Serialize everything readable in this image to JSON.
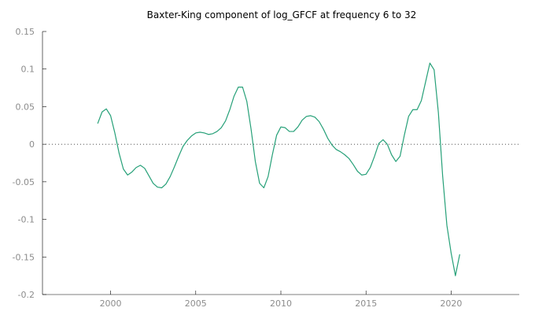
{
  "chart_data": {
    "type": "line",
    "title": "Baxter-King component of log_GFCF at frequency 6 to 32",
    "xlabel": "",
    "ylabel": "",
    "xlim": [
      1996.0,
      2024.0
    ],
    "ylim": [
      -0.2,
      0.15
    ],
    "xticks": [
      2000,
      2005,
      2010,
      2015,
      2020
    ],
    "yticks": [
      -0.2,
      -0.15,
      -0.1,
      -0.05,
      0,
      0.05,
      0.1,
      0.15
    ],
    "xtick_labels": [
      "2000",
      "2005",
      "2010",
      "2015",
      "2020"
    ],
    "ytick_labels": [
      "-0.2",
      "-0.15",
      "-0.1",
      "-0.05",
      "0",
      "0.05",
      "0.1",
      "0.15"
    ],
    "zero_line": true,
    "grid": false,
    "legend": "none",
    "color": "#26a078",
    "series": [
      {
        "x": [
          1999.25,
          1999.5,
          1999.75,
          2000.0,
          2000.25,
          2000.5,
          2000.75,
          2001.0,
          2001.25,
          2001.5,
          2001.75,
          2002.0,
          2002.25,
          2002.5,
          2002.75,
          2003.0,
          2003.25,
          2003.5,
          2003.75,
          2004.0,
          2004.25,
          2004.5,
          2004.75,
          2005.0,
          2005.25,
          2005.5,
          2005.75,
          2006.0,
          2006.25,
          2006.5,
          2006.75,
          2007.0,
          2007.25,
          2007.5,
          2007.75,
          2008.0,
          2008.25,
          2008.5,
          2008.75,
          2009.0,
          2009.25,
          2009.5,
          2009.75,
          2010.0,
          2010.25,
          2010.5,
          2010.75,
          2011.0,
          2011.25,
          2011.5,
          2011.75,
          2012.0,
          2012.25,
          2012.5,
          2012.75,
          2013.0,
          2013.25,
          2013.5,
          2013.75,
          2014.0,
          2014.25,
          2014.5,
          2014.75,
          2015.0,
          2015.25,
          2015.5,
          2015.75,
          2016.0,
          2016.25,
          2016.5,
          2016.75,
          2017.0,
          2017.25,
          2017.5,
          2017.75,
          2018.0,
          2018.25,
          2018.5,
          2018.75,
          2019.0,
          2019.25,
          2019.5,
          2019.75,
          2020.0,
          2020.25,
          2020.5
        ],
        "values": [
          0.028,
          0.043,
          0.047,
          0.038,
          0.015,
          -0.012,
          -0.033,
          -0.041,
          -0.037,
          -0.031,
          -0.028,
          -0.032,
          -0.042,
          -0.052,
          -0.057,
          -0.058,
          -0.053,
          -0.043,
          -0.03,
          -0.016,
          -0.003,
          0.005,
          0.011,
          0.015,
          0.016,
          0.015,
          0.013,
          0.014,
          0.017,
          0.022,
          0.031,
          0.046,
          0.064,
          0.076,
          0.076,
          0.057,
          0.02,
          -0.023,
          -0.052,
          -0.058,
          -0.043,
          -0.014,
          0.012,
          0.023,
          0.022,
          0.017,
          0.017,
          0.023,
          0.032,
          0.037,
          0.038,
          0.036,
          0.03,
          0.02,
          0.008,
          -0.001,
          -0.007,
          -0.01,
          -0.014,
          -0.019,
          -0.027,
          -0.036,
          -0.041,
          -0.04,
          -0.031,
          -0.016,
          0.001,
          0.006,
          0.0,
          -0.014,
          -0.023,
          -0.016,
          0.012,
          0.037,
          0.046,
          0.046,
          0.058,
          0.083,
          0.108,
          0.099,
          0.042,
          -0.042,
          -0.108,
          -0.145,
          -0.175,
          -0.147
        ]
      }
    ]
  }
}
